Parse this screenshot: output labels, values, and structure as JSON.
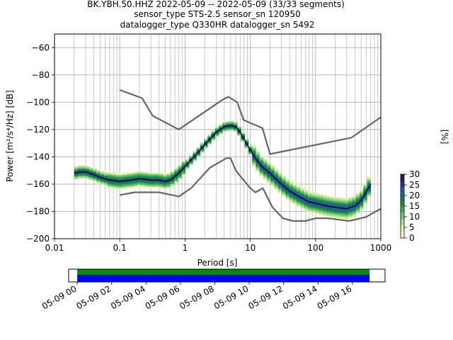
{
  "title": {
    "line1": "BK.YBH.50.HHZ   2022-05-09 -- 2022-05-09  (33/33 segments)",
    "line2": "sensor_type STS-2.5 sensor_sn 120950",
    "line3": "datalogger_type Q330HR datalogger_sn 5492"
  },
  "colorbar": {
    "label": "[%]",
    "ticks": [
      "0",
      "5",
      "10",
      "15",
      "20",
      "25",
      "30"
    ],
    "range": [
      0,
      30
    ]
  },
  "timeline": {
    "ticks": [
      "05-09 00",
      "05-09 02",
      "05-09 04",
      "05-09 06",
      "05-09 08",
      "05-09 10",
      "05-09 12",
      "05-09 14",
      "05-09 16"
    ],
    "data_start_hour": 0,
    "data_end_hour": 17,
    "range_hours": [
      -0.5,
      17.9
    ],
    "colors": {
      "coverage": "#0a8a0a",
      "segments": "#0000ff"
    }
  },
  "chart_data": {
    "type": "heatmap",
    "xlabel": "Period [s]",
    "ylabel": "Power [m²/s⁴/Hz] [dB]",
    "xscale": "log",
    "xlim": [
      0.01,
      1000
    ],
    "ylim": [
      -200,
      -50
    ],
    "xticks": [
      "0.01",
      "0.1",
      "1",
      "10",
      "100",
      "1000"
    ],
    "yticks": [
      "−200",
      "−180",
      "−160",
      "−140",
      "−120",
      "−100",
      "−80",
      "−60"
    ],
    "grid": true,
    "mean_curve": {
      "x": [
        0.02,
        0.025,
        0.03,
        0.04,
        0.05,
        0.07,
        0.1,
        0.15,
        0.2,
        0.3,
        0.4,
        0.5,
        0.6,
        0.8,
        1,
        1.5,
        2,
        3,
        4,
        5,
        6,
        7,
        8,
        10,
        12,
        15,
        20,
        30,
        40,
        60,
        80,
        100,
        150,
        200,
        300,
        400,
        500,
        700
      ],
      "y": [
        -152,
        -151,
        -151,
        -153,
        -155,
        -157,
        -158,
        -157,
        -156,
        -157,
        -157,
        -158,
        -157,
        -152,
        -147,
        -138,
        -131,
        -122,
        -118,
        -117,
        -118,
        -122,
        -127,
        -135,
        -141,
        -147,
        -152,
        -160,
        -165,
        -170,
        -173,
        -174,
        -176,
        -177,
        -178,
        -176,
        -172,
        -160
      ]
    },
    "nhnm": {
      "x": [
        0.1,
        0.22,
        0.32,
        0.8,
        3.8,
        4.6,
        6.3,
        7.9,
        15.4,
        20,
        354,
        1000
      ],
      "y": [
        -91,
        -97,
        -110,
        -120,
        -98,
        -96,
        -100,
        -113,
        -119,
        -138,
        -126,
        -111
      ]
    },
    "nlnm": {
      "x": [
        0.1,
        0.17,
        0.4,
        0.8,
        1.24,
        2.4,
        4.3,
        5,
        6,
        10,
        12,
        15.6,
        21.9,
        31.6,
        45,
        70,
        101,
        154,
        328,
        600,
        1000
      ],
      "y": [
        -168,
        -166,
        -166,
        -169,
        -163,
        -148,
        -141,
        -141,
        -150,
        -163,
        -166,
        -163,
        -177,
        -185,
        -187,
        -187,
        -185,
        -185,
        -187,
        -184,
        -178
      ]
    },
    "density_colormap": [
      "#ffffcc",
      "#d9f0a3",
      "#addd8e",
      "#78c679",
      "#41ab5d",
      "#238443",
      "#1d6d6b",
      "#225ea8",
      "#253494",
      "#2a1a5e"
    ]
  }
}
